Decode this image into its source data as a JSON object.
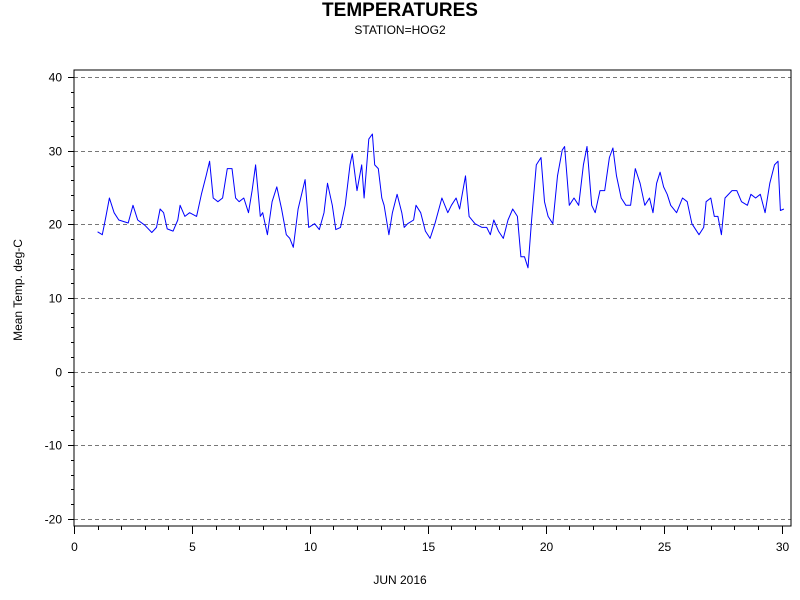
{
  "chart_data": {
    "type": "line",
    "title": "TEMPERATURES",
    "subtitle": "STATION=HOG2",
    "xlabel": "JUN 2016",
    "ylabel": "Mean Temp. deg-C",
    "xlim": [
      0,
      30.4
    ],
    "ylim": [
      -21,
      41
    ],
    "xticks": [
      0,
      5,
      10,
      15,
      20,
      25,
      30
    ],
    "yticks": [
      -20,
      -10,
      0,
      10,
      20,
      30,
      40
    ],
    "grid": "horizontal-dashed",
    "line_color": "#0000ff",
    "series": [
      {
        "points": [
          [
            1.0,
            19.0
          ],
          [
            1.2,
            18.6
          ],
          [
            1.35,
            21.0
          ],
          [
            1.5,
            23.6
          ],
          [
            1.7,
            21.6
          ],
          [
            1.9,
            20.6
          ],
          [
            2.1,
            20.4
          ],
          [
            2.3,
            20.2
          ],
          [
            2.5,
            22.6
          ],
          [
            2.7,
            20.6
          ],
          [
            3.0,
            19.9
          ],
          [
            3.3,
            18.9
          ],
          [
            3.5,
            19.6
          ],
          [
            3.65,
            22.1
          ],
          [
            3.8,
            21.6
          ],
          [
            3.95,
            19.4
          ],
          [
            4.2,
            19.1
          ],
          [
            4.4,
            20.6
          ],
          [
            4.5,
            22.6
          ],
          [
            4.7,
            21.1
          ],
          [
            4.9,
            21.6
          ],
          [
            5.2,
            21.1
          ],
          [
            5.4,
            24.1
          ],
          [
            5.6,
            26.6
          ],
          [
            5.75,
            28.6
          ],
          [
            5.9,
            23.6
          ],
          [
            6.1,
            23.1
          ],
          [
            6.3,
            23.6
          ],
          [
            6.5,
            27.6
          ],
          [
            6.7,
            27.6
          ],
          [
            6.85,
            23.6
          ],
          [
            7.0,
            23.1
          ],
          [
            7.2,
            23.6
          ],
          [
            7.4,
            21.6
          ],
          [
            7.55,
            24.6
          ],
          [
            7.7,
            28.1
          ],
          [
            7.9,
            21.1
          ],
          [
            8.0,
            21.6
          ],
          [
            8.2,
            18.6
          ],
          [
            8.4,
            23.1
          ],
          [
            8.6,
            25.1
          ],
          [
            8.8,
            22.1
          ],
          [
            9.0,
            18.6
          ],
          [
            9.15,
            18.1
          ],
          [
            9.3,
            16.9
          ],
          [
            9.5,
            22.1
          ],
          [
            9.8,
            26.1
          ],
          [
            9.95,
            19.6
          ],
          [
            10.2,
            20.1
          ],
          [
            10.4,
            19.3
          ],
          [
            10.6,
            21.6
          ],
          [
            10.75,
            25.6
          ],
          [
            10.95,
            22.6
          ],
          [
            11.1,
            19.3
          ],
          [
            11.3,
            19.6
          ],
          [
            11.5,
            22.6
          ],
          [
            11.7,
            28.1
          ],
          [
            11.8,
            29.6
          ],
          [
            12.0,
            24.6
          ],
          [
            12.2,
            28.1
          ],
          [
            12.3,
            23.6
          ],
          [
            12.5,
            31.6
          ],
          [
            12.65,
            32.3
          ],
          [
            12.75,
            28.1
          ],
          [
            12.9,
            27.6
          ],
          [
            13.05,
            23.6
          ],
          [
            13.15,
            22.6
          ],
          [
            13.35,
            18.6
          ],
          [
            13.5,
            21.6
          ],
          [
            13.7,
            24.1
          ],
          [
            13.9,
            21.6
          ],
          [
            14.0,
            19.6
          ],
          [
            14.15,
            20.1
          ],
          [
            14.4,
            20.6
          ],
          [
            14.5,
            22.6
          ],
          [
            14.7,
            21.6
          ],
          [
            14.9,
            19.1
          ],
          [
            15.1,
            18.1
          ],
          [
            15.3,
            20.1
          ],
          [
            15.6,
            23.6
          ],
          [
            15.85,
            21.6
          ],
          [
            16.0,
            22.6
          ],
          [
            16.2,
            23.6
          ],
          [
            16.35,
            22.1
          ],
          [
            16.6,
            26.6
          ],
          [
            16.75,
            21.1
          ],
          [
            17.0,
            20.1
          ],
          [
            17.3,
            19.6
          ],
          [
            17.5,
            19.6
          ],
          [
            17.65,
            18.6
          ],
          [
            17.8,
            20.6
          ],
          [
            18.0,
            19.1
          ],
          [
            18.2,
            18.1
          ],
          [
            18.4,
            20.6
          ],
          [
            18.6,
            22.1
          ],
          [
            18.8,
            21.1
          ],
          [
            18.95,
            15.6
          ],
          [
            19.1,
            15.6
          ],
          [
            19.25,
            14.1
          ],
          [
            19.4,
            20.6
          ],
          [
            19.6,
            28.1
          ],
          [
            19.8,
            29.1
          ],
          [
            19.95,
            23.1
          ],
          [
            20.1,
            21.1
          ],
          [
            20.3,
            20.1
          ],
          [
            20.5,
            26.6
          ],
          [
            20.7,
            30.1
          ],
          [
            20.8,
            30.6
          ],
          [
            21.0,
            22.6
          ],
          [
            21.2,
            23.6
          ],
          [
            21.4,
            22.6
          ],
          [
            21.6,
            28.1
          ],
          [
            21.75,
            30.6
          ],
          [
            21.95,
            22.6
          ],
          [
            22.1,
            21.6
          ],
          [
            22.3,
            24.6
          ],
          [
            22.5,
            24.6
          ],
          [
            22.7,
            29.1
          ],
          [
            22.85,
            30.4
          ],
          [
            23.0,
            26.6
          ],
          [
            23.2,
            23.6
          ],
          [
            23.4,
            22.6
          ],
          [
            23.6,
            22.6
          ],
          [
            23.8,
            27.6
          ],
          [
            24.0,
            25.6
          ],
          [
            24.2,
            22.6
          ],
          [
            24.4,
            23.6
          ],
          [
            24.55,
            21.6
          ],
          [
            24.7,
            25.6
          ],
          [
            24.85,
            27.1
          ],
          [
            25.0,
            25.1
          ],
          [
            25.15,
            24.1
          ],
          [
            25.3,
            22.6
          ],
          [
            25.55,
            21.6
          ],
          [
            25.8,
            23.6
          ],
          [
            26.0,
            23.1
          ],
          [
            26.2,
            20.1
          ],
          [
            26.5,
            18.6
          ],
          [
            26.7,
            19.6
          ],
          [
            26.8,
            23.1
          ],
          [
            27.0,
            23.6
          ],
          [
            27.15,
            21.1
          ],
          [
            27.3,
            21.1
          ],
          [
            27.45,
            18.6
          ],
          [
            27.6,
            23.6
          ],
          [
            27.9,
            24.6
          ],
          [
            28.1,
            24.6
          ],
          [
            28.3,
            23.1
          ],
          [
            28.55,
            22.6
          ],
          [
            28.7,
            24.1
          ],
          [
            28.9,
            23.6
          ],
          [
            29.1,
            24.1
          ],
          [
            29.3,
            21.6
          ],
          [
            29.5,
            25.6
          ],
          [
            29.7,
            28.1
          ],
          [
            29.85,
            28.6
          ],
          [
            29.95,
            21.9
          ],
          [
            30.1,
            22.1
          ]
        ]
      }
    ]
  }
}
